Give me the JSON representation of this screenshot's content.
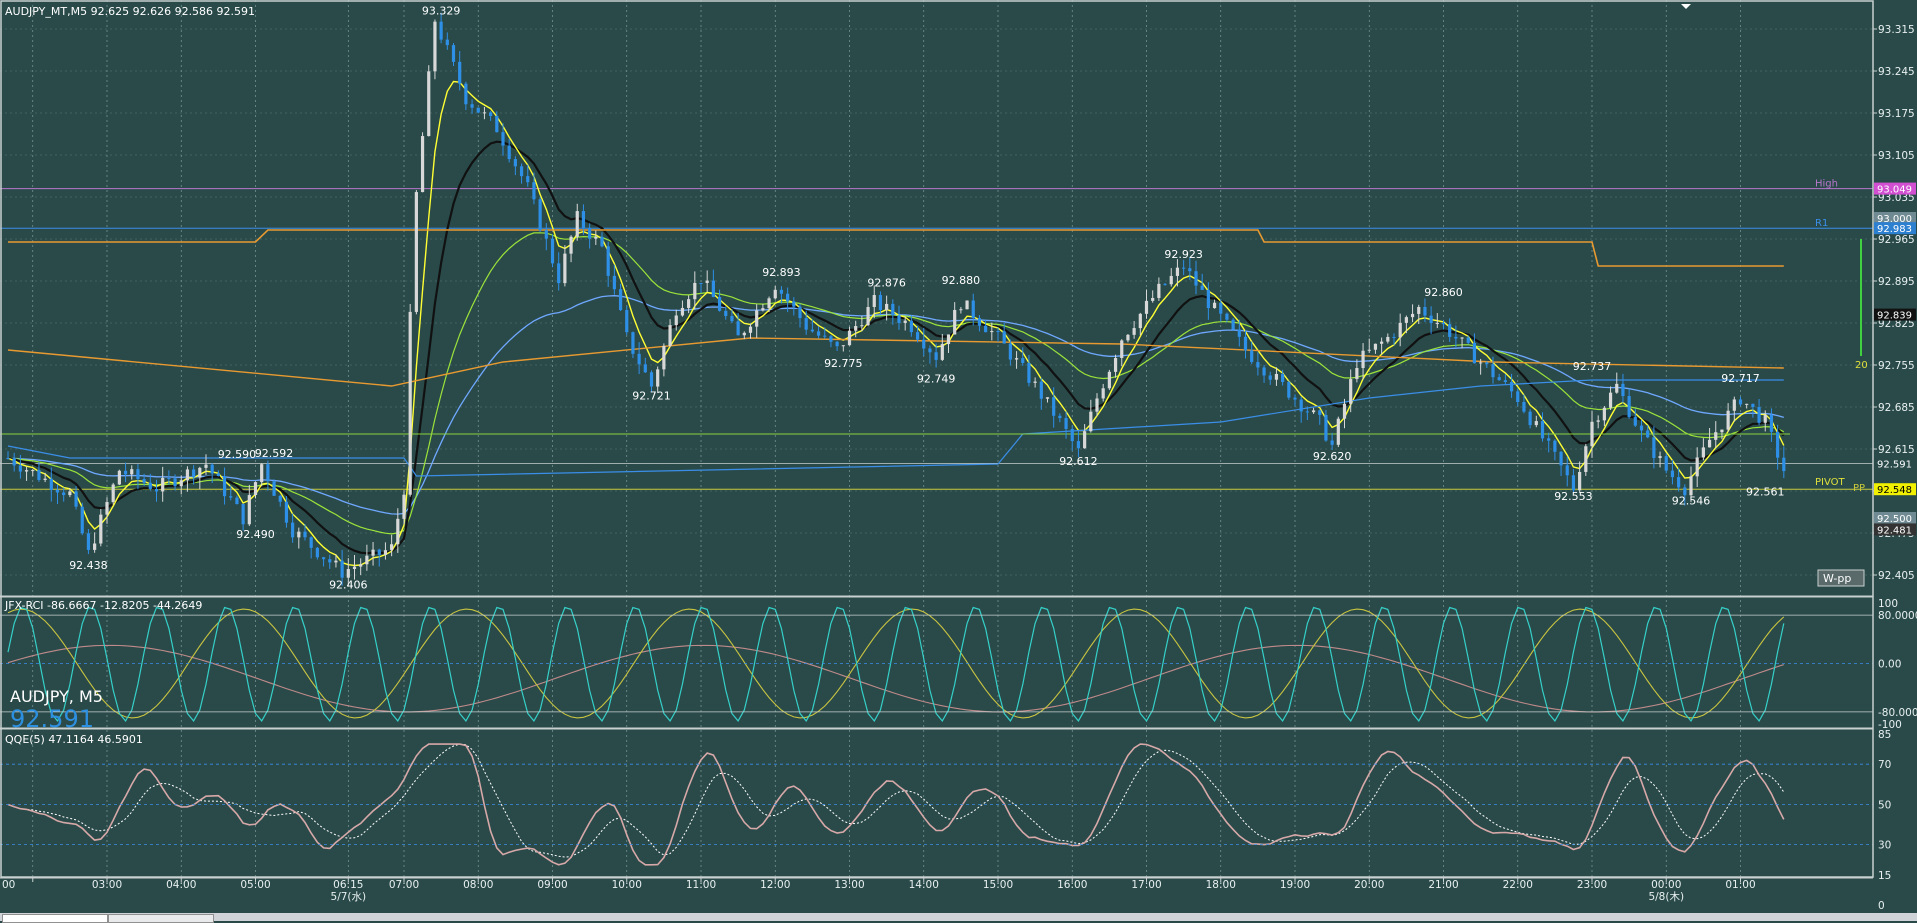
{
  "header": {
    "symbol_info": "AUDJPY_MT,M5  92.625 92.626 92.586 92.591",
    "rci_info": "JFX-RCI -86.6667 -12.8205 -44.2649",
    "qqe_info": "QQE(5) 47.1164 46.5901"
  },
  "watermark": {
    "symbol": "AUDJPY, M5",
    "price": "92.591"
  },
  "wpp_label": "W-pp",
  "colors": {
    "background": "#2a4a4a",
    "bull_candle": "#d8d8d8",
    "bear_candle": "#2e8fe6",
    "ma_fast": "#ffff33",
    "ma_slow": "#111111",
    "ma_green": "#9be33a",
    "ma_blue": "#6fa8ff",
    "ma_orange": "#e89a30",
    "rci_fast": "#35d0c8",
    "rci_mid": "#c9c440",
    "rci_slow": "#c08a8a",
    "qqe_line": "#d7a8a8",
    "qqe_signal": "#ffffff"
  },
  "chart_data": {
    "type": "candlestick",
    "symbol": "AUDJPY",
    "timeframe": "M5",
    "ohlc_current": {
      "open": 92.625,
      "high": 92.626,
      "low": 92.586,
      "close": 92.591
    },
    "x_ticks": [
      "00",
      "03:00",
      "04:00",
      "05:00",
      "06:15",
      "07:00",
      "08:00",
      "09:00",
      "10:00",
      "11:00",
      "12:00",
      "13:00",
      "14:00",
      "15:00",
      "16:00",
      "17:00",
      "18:00",
      "19:00",
      "20:00",
      "21:00",
      "22:00",
      "23:00",
      "00:00",
      "01:00"
    ],
    "date_labels": [
      {
        "label": "5/7(水)",
        "at": "06:15"
      },
      {
        "label": "5/8(木)",
        "at": "00:00"
      }
    ],
    "price_axis": {
      "ylim": [
        92.38,
        93.35
      ],
      "ticks": [
        "93.315",
        "93.245",
        "93.175",
        "93.105",
        "93.035",
        "92.965",
        "92.895",
        "92.825",
        "92.755",
        "92.685",
        "92.615",
        "92.545",
        "92.475",
        "92.405"
      ]
    },
    "price_tags": [
      {
        "label": "93.049",
        "value": 93.049,
        "bg": "#d24fd2",
        "fg": "#ffffff"
      },
      {
        "label": "93.000",
        "value": 93.0,
        "bg": "#6f8a92",
        "fg": "#ffffff"
      },
      {
        "label": "92.983",
        "value": 92.983,
        "bg": "#2d7fd0",
        "fg": "#ffffff"
      },
      {
        "label": "92.839",
        "value": 92.839,
        "bg": "#111111",
        "fg": "#ffffff"
      },
      {
        "label": "92.591",
        "value": 92.591,
        "bg": "#2a4a4a",
        "fg": "#ffffff"
      },
      {
        "label": "92.548",
        "value": 92.548,
        "bg": "#f0f000",
        "fg": "#000000"
      },
      {
        "label": "92.500",
        "value": 92.5,
        "bg": "#6f8a92",
        "fg": "#ffffff"
      },
      {
        "label": "92.481",
        "value": 92.481,
        "bg": "#333333",
        "fg": "#ffffff"
      }
    ],
    "level_lines": [
      {
        "name": "High",
        "value": 93.049,
        "color": "#b777cc"
      },
      {
        "name": "R1",
        "value": 92.983,
        "color": "#3a8ee8"
      },
      {
        "name": "PIVOT",
        "value": 92.548,
        "color": "#c9c93a"
      },
      {
        "name": "PP",
        "value": 92.548,
        "color": "#c9c93a"
      }
    ],
    "price_labels": [
      {
        "text": "93.329",
        "value": 93.329,
        "time": "07:30",
        "pos": "above"
      },
      {
        "text": "92.893",
        "value": 92.893,
        "time": "12:05",
        "pos": "above"
      },
      {
        "text": "92.876",
        "value": 92.876,
        "time": "13:30",
        "pos": "above"
      },
      {
        "text": "92.880",
        "value": 92.88,
        "time": "14:30",
        "pos": "above"
      },
      {
        "text": "92.923",
        "value": 92.923,
        "time": "17:30",
        "pos": "above"
      },
      {
        "text": "92.860",
        "value": 92.86,
        "time": "21:00",
        "pos": "above"
      },
      {
        "text": "92.737",
        "value": 92.737,
        "time": "23:00",
        "pos": "above"
      },
      {
        "text": "92.717",
        "value": 92.717,
        "time": "01:00",
        "pos": "above"
      },
      {
        "text": "92.590",
        "value": 92.59,
        "time": "04:45",
        "pos": "above"
      },
      {
        "text": "92.592",
        "value": 92.592,
        "time": "05:15",
        "pos": "above"
      },
      {
        "text": "92.438",
        "value": 92.438,
        "time": "02:45",
        "pos": "below"
      },
      {
        "text": "92.490",
        "value": 92.49,
        "time": "05:00",
        "pos": "below"
      },
      {
        "text": "92.406",
        "value": 92.406,
        "time": "06:15",
        "pos": "below"
      },
      {
        "text": "92.721",
        "value": 92.721,
        "time": "10:20",
        "pos": "below"
      },
      {
        "text": "92.775",
        "value": 92.775,
        "time": "12:55",
        "pos": "below"
      },
      {
        "text": "92.749",
        "value": 92.749,
        "time": "14:10",
        "pos": "below"
      },
      {
        "text": "92.612",
        "value": 92.612,
        "time": "16:05",
        "pos": "below"
      },
      {
        "text": "92.620",
        "value": 92.62,
        "time": "19:30",
        "pos": "below"
      },
      {
        "text": "92.553",
        "value": 92.553,
        "time": "22:45",
        "pos": "below"
      },
      {
        "text": "92.546",
        "value": 92.546,
        "time": "00:20",
        "pos": "below"
      },
      {
        "text": "92.561",
        "value": 92.561,
        "time": "01:20",
        "pos": "below"
      }
    ],
    "pivot_label": "PIVOT",
    "pp_label": "PP",
    "ma_label": "20",
    "rci_axis": {
      "ylim": [
        -100,
        100
      ],
      "ticks": [
        "100",
        "80.0000",
        "0.00",
        "-80.0000",
        "-100"
      ]
    },
    "qqe_axis": {
      "ylim": [
        0,
        85
      ],
      "ticks": [
        "85",
        "70",
        "50",
        "30",
        "15",
        "0"
      ]
    }
  }
}
